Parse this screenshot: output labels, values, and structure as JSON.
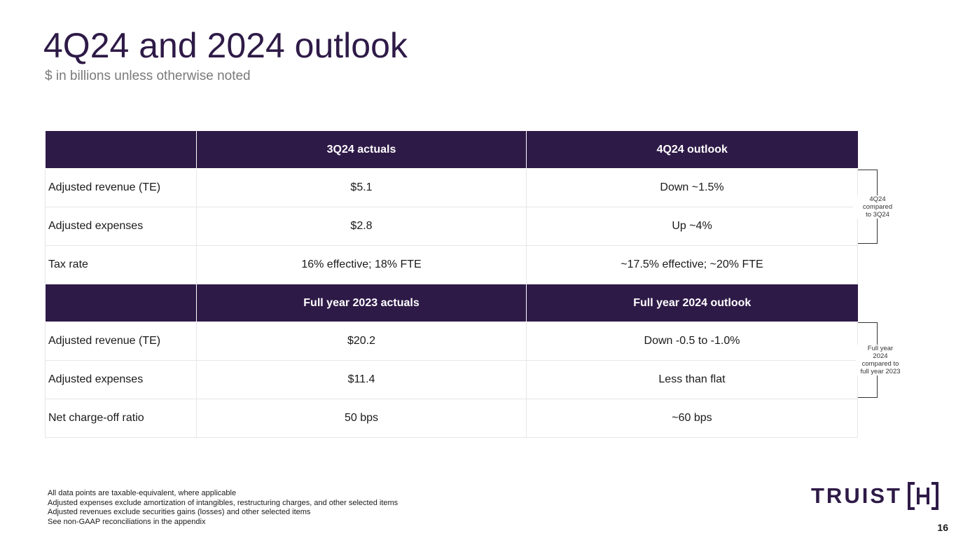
{
  "header": {
    "title": "4Q24 and 2024 outlook",
    "subtitle": "$ in billions unless otherwise noted"
  },
  "quarterly": {
    "columns": [
      "",
      "3Q24 actuals",
      "4Q24 outlook"
    ],
    "rows": [
      {
        "label": "Adjusted revenue (TE)",
        "actual": "$5.1",
        "outlook": "Down ~1.5%"
      },
      {
        "label": "Adjusted expenses",
        "actual": "$2.8",
        "outlook": "Up ~4%"
      },
      {
        "label": "Tax rate",
        "actual": "16% effective; 18% FTE",
        "outlook": "~17.5% effective; ~20% FTE"
      }
    ],
    "bracket_note": [
      "4Q24",
      "compared",
      "to 3Q24"
    ]
  },
  "annual": {
    "columns": [
      "",
      "Full year 2023 actuals",
      "Full year 2024 outlook"
    ],
    "rows": [
      {
        "label": "Adjusted revenue (TE)",
        "actual": "$20.2",
        "outlook": "Down -0.5 to -1.0%"
      },
      {
        "label": "Adjusted expenses",
        "actual": "$11.4",
        "outlook": "Less than flat"
      },
      {
        "label": "Net charge-off ratio",
        "actual": "50 bps",
        "outlook": "~60 bps"
      }
    ],
    "bracket_note": [
      "Full year",
      "2024",
      "compared to",
      "full year 2023"
    ]
  },
  "footnotes": [
    "All data points are taxable-equivalent, where applicable",
    "Adjusted expenses exclude amortization of intangibles, restructuring charges, and other selected items",
    "Adjusted revenues exclude securities gains (losses) and other selected items",
    "See non-GAAP reconciliations in the appendix"
  ],
  "logo": {
    "wordmark": "TRUIST",
    "color": "#2e1a47"
  },
  "page_number": "16",
  "colors": {
    "header_bg": "#2e1a47",
    "title": "#2e1a47"
  }
}
